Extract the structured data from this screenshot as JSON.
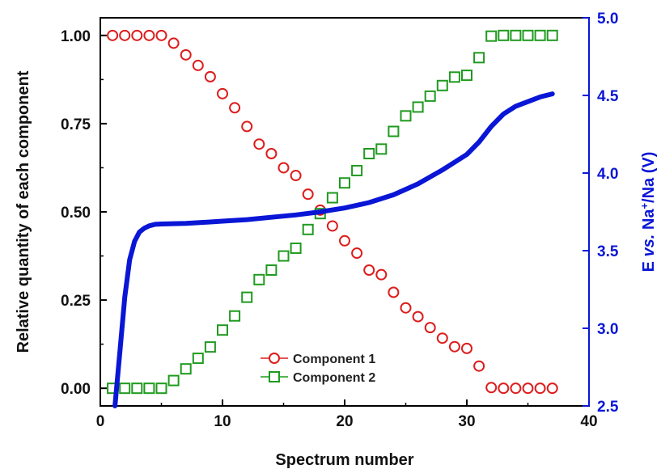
{
  "chart_data": {
    "type": "scatter",
    "title": "",
    "xlabel": "Spectrum number",
    "ylabel": "Relative quantity of each component",
    "y2label": {
      "prefix": "E ",
      "italic": "vs.",
      "mid": " Na",
      "sup": "+",
      "suffix": "/Na (V)"
    },
    "xlim": [
      0,
      40
    ],
    "ylim": [
      -0.05,
      1.05
    ],
    "y2lim": [
      2.5,
      5.0
    ],
    "xticks": [
      "0",
      "10",
      "20",
      "30",
      "40"
    ],
    "yticks": [
      "0.00",
      "0.25",
      "0.50",
      "0.75",
      "1.00"
    ],
    "y2ticks": [
      "2.5",
      "3.0",
      "3.5",
      "4.0",
      "4.5",
      "5.0"
    ],
    "grid": false,
    "legend": "bottom-center",
    "series": [
      {
        "name": "Component 1",
        "marker": "circle",
        "color": "#dd1c1c",
        "axis": "left",
        "x": [
          1,
          2,
          3,
          4,
          5,
          6,
          7,
          8,
          9,
          10,
          11,
          12,
          13,
          14,
          15,
          16,
          17,
          18,
          19,
          20,
          21,
          22,
          23,
          24,
          25,
          26,
          27,
          28,
          29,
          30,
          31,
          32,
          33,
          34,
          35,
          36,
          37
        ],
        "y": [
          1.0,
          1.0,
          1.0,
          1.0,
          1.0,
          0.978,
          0.945,
          0.915,
          0.883,
          0.835,
          0.795,
          0.742,
          0.692,
          0.665,
          0.625,
          0.603,
          0.55,
          0.505,
          0.46,
          0.418,
          0.383,
          0.335,
          0.322,
          0.272,
          0.228,
          0.203,
          0.172,
          0.142,
          0.118,
          0.113,
          0.063,
          0.002,
          0.0,
          0.0,
          0.0,
          0.0,
          0.0
        ]
      },
      {
        "name": "Component 2",
        "marker": "square",
        "color": "#1f9a1f",
        "axis": "left",
        "x": [
          1,
          2,
          3,
          4,
          5,
          6,
          7,
          8,
          9,
          10,
          11,
          12,
          13,
          14,
          15,
          16,
          17,
          18,
          19,
          20,
          21,
          22,
          23,
          24,
          25,
          26,
          27,
          28,
          29,
          30,
          31,
          32,
          33,
          34,
          35,
          36,
          37
        ],
        "y": [
          0.0,
          0.0,
          0.0,
          0.0,
          0.0,
          0.022,
          0.055,
          0.085,
          0.117,
          0.165,
          0.205,
          0.258,
          0.308,
          0.335,
          0.375,
          0.397,
          0.45,
          0.495,
          0.54,
          0.582,
          0.617,
          0.665,
          0.678,
          0.728,
          0.772,
          0.797,
          0.828,
          0.858,
          0.882,
          0.887,
          0.937,
          0.998,
          1.0,
          1.0,
          1.0,
          1.0,
          1.0
        ]
      },
      {
        "name": "E vs. Na+/Na",
        "marker": "line",
        "color": "#0a16d6",
        "axis": "right",
        "x": [
          1.2,
          1.6,
          2.0,
          2.4,
          2.8,
          3.2,
          3.6,
          4.0,
          4.5,
          5.0,
          6,
          7,
          8,
          9,
          10,
          12,
          14,
          16,
          18,
          20,
          22,
          24,
          26,
          28,
          29,
          30,
          31,
          32,
          33,
          34,
          35,
          36,
          37
        ],
        "y": [
          2.5,
          2.85,
          3.2,
          3.44,
          3.56,
          3.62,
          3.645,
          3.66,
          3.67,
          3.672,
          3.674,
          3.676,
          3.68,
          3.685,
          3.69,
          3.7,
          3.715,
          3.73,
          3.75,
          3.775,
          3.81,
          3.86,
          3.93,
          4.02,
          4.07,
          4.12,
          4.2,
          4.3,
          4.38,
          4.43,
          4.46,
          4.49,
          4.51
        ]
      }
    ]
  }
}
